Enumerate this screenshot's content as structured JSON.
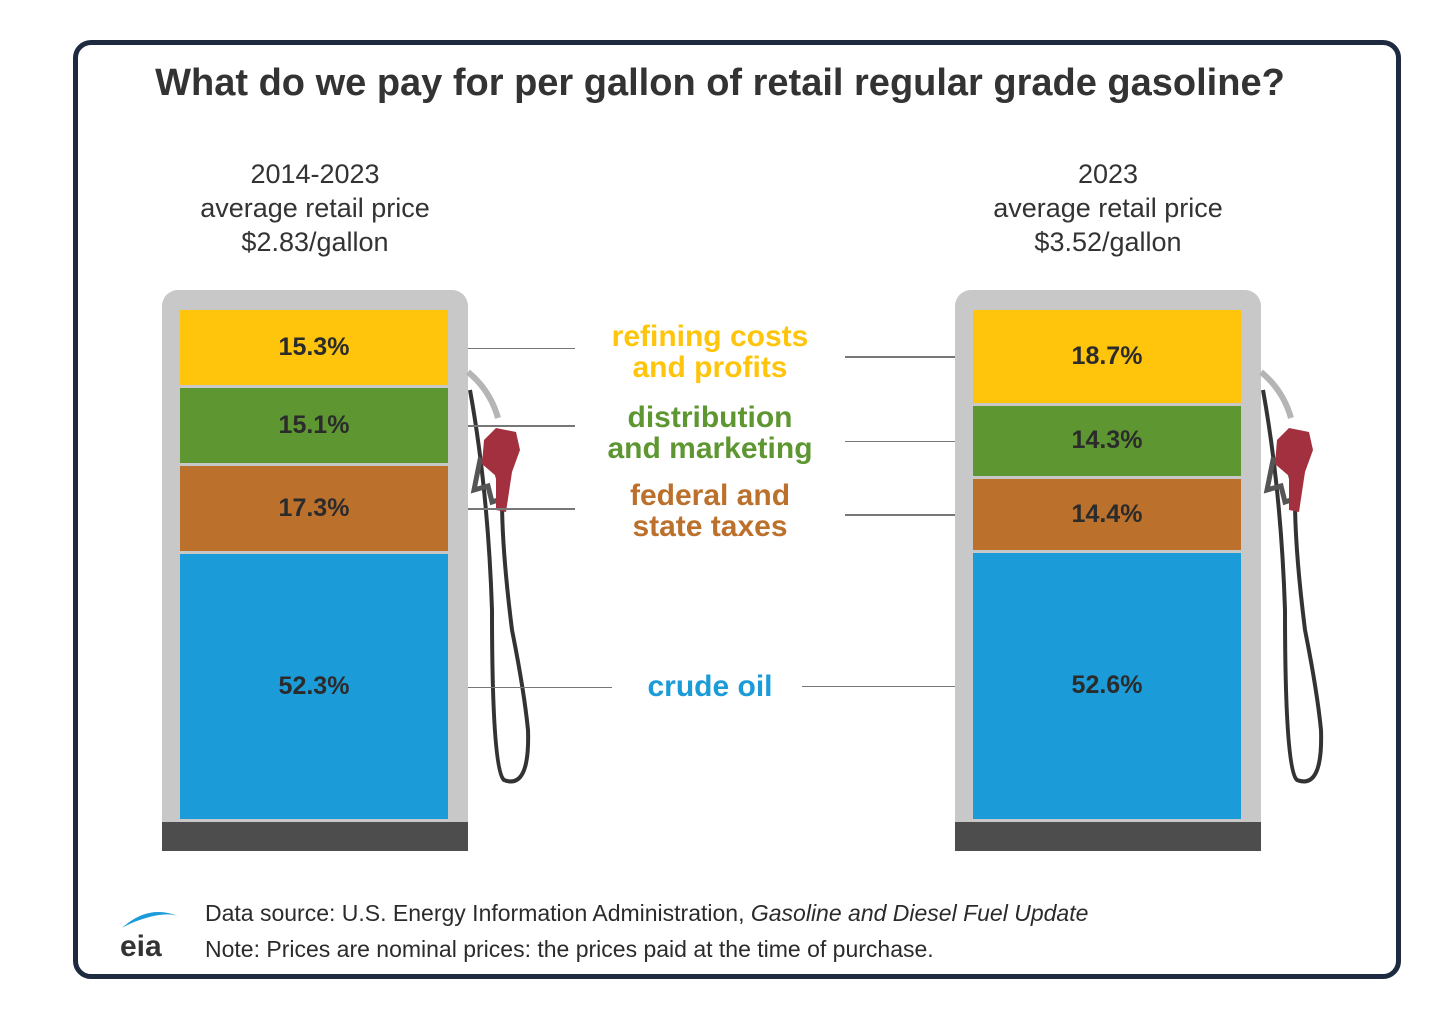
{
  "chart_data": {
    "type": "bar",
    "stacked": true,
    "title": "What do we pay for per gallon of retail regular grade gasoline?",
    "categories": [
      "2014-2023 average retail price $2.83/gallon",
      "2023 average retail price $3.52/gallon"
    ],
    "columns": [
      {
        "period": "2014-2023",
        "subtitle": "average retail price",
        "price": "$2.83/gallon"
      },
      {
        "period": "2023",
        "subtitle": "average retail price",
        "price": "$3.52/gallon"
      }
    ],
    "series": [
      {
        "name": "refining costs and profits",
        "lines": [
          "refining costs",
          "and profits"
        ],
        "color": "#fec50c",
        "values": [
          15.3,
          18.7
        ],
        "labels": [
          "15.3%",
          "18.7%"
        ]
      },
      {
        "name": "distribution and marketing",
        "lines": [
          "distribution",
          "and marketing"
        ],
        "color": "#5e9732",
        "values": [
          15.1,
          14.3
        ],
        "labels": [
          "15.1%",
          "14.3%"
        ]
      },
      {
        "name": "federal and state taxes",
        "lines": [
          "federal and",
          "state taxes"
        ],
        "color": "#bb702c",
        "values": [
          17.3,
          14.4
        ],
        "labels": [
          "17.3%",
          "14.4%"
        ]
      },
      {
        "name": "crude oil",
        "lines": [
          "crude oil"
        ],
        "color": "#1b9bd7",
        "values": [
          52.3,
          52.6
        ],
        "labels": [
          "52.3%",
          "52.6%"
        ]
      }
    ]
  },
  "footer": {
    "source_prefix": "Data source: U.S. Energy Information Administration, ",
    "source_title": "Gasoline and Diesel Fuel Update",
    "note": "Note: Prices are nominal prices: the prices paid at the time of purchase.",
    "logo": "eia"
  }
}
